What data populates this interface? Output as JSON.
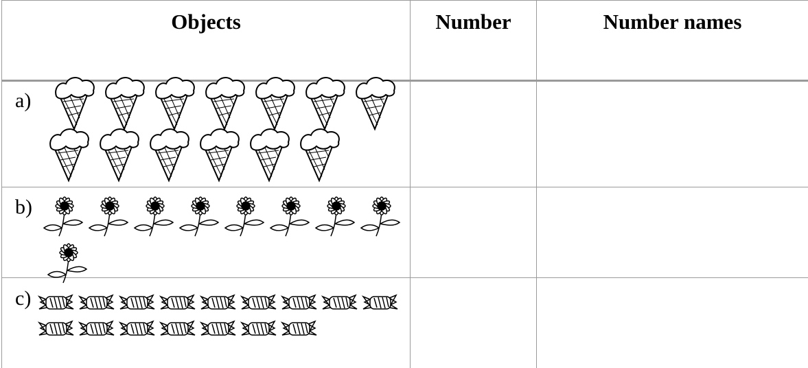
{
  "table": {
    "columns": [
      "Objects",
      "Number",
      "Number names"
    ],
    "rows": [
      {
        "label": "a)"
      },
      {
        "label": "b)"
      },
      {
        "label": "c)"
      }
    ]
  }
}
